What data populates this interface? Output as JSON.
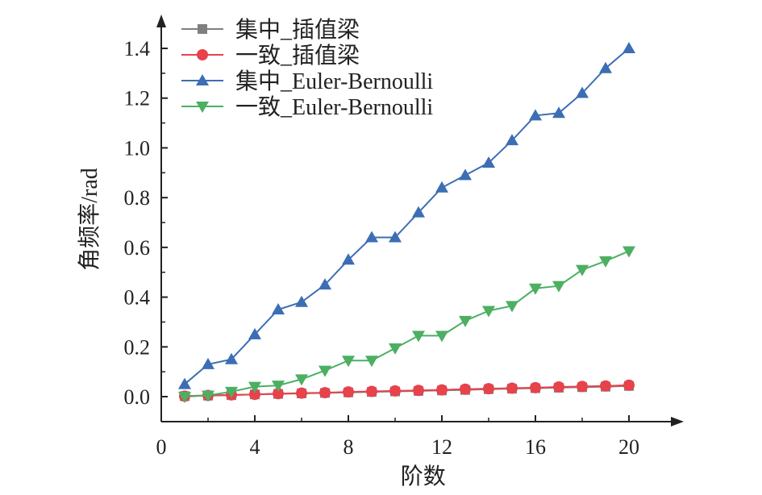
{
  "chart_data": {
    "type": "line",
    "xlabel": "阶数",
    "ylabel": "角频率/rad",
    "xlim": [
      0,
      22
    ],
    "ylim": [
      -0.1,
      1.5
    ],
    "xticks": [
      0,
      4,
      8,
      12,
      16,
      20
    ],
    "xtick_labels": [
      "0",
      "4",
      "8",
      "12",
      "16",
      "20"
    ],
    "yticks": [
      0.0,
      0.2,
      0.4,
      0.6,
      0.8,
      1.0,
      1.2,
      1.4
    ],
    "ytick_labels": [
      "0.0",
      "0.2",
      "0.4",
      "0.6",
      "0.8",
      "1.0",
      "1.2",
      "1.4"
    ],
    "grid": false,
    "legend_position": "top-left",
    "x": [
      1,
      2,
      3,
      4,
      5,
      6,
      7,
      8,
      9,
      10,
      11,
      12,
      13,
      14,
      15,
      16,
      17,
      18,
      19,
      20
    ],
    "series": [
      {
        "name": "集中_插值梁",
        "color": "#7f7f7f",
        "marker": "square",
        "values": [
          0.002,
          0.004,
          0.006,
          0.009,
          0.011,
          0.013,
          0.015,
          0.017,
          0.019,
          0.021,
          0.023,
          0.025,
          0.027,
          0.03,
          0.032,
          0.034,
          0.036,
          0.038,
          0.04,
          0.043
        ]
      },
      {
        "name": "一致_插值梁",
        "color": "#e8424a",
        "marker": "circle",
        "values": [
          0.002,
          0.005,
          0.007,
          0.009,
          0.012,
          0.014,
          0.016,
          0.019,
          0.021,
          0.023,
          0.025,
          0.027,
          0.03,
          0.032,
          0.034,
          0.036,
          0.039,
          0.041,
          0.043,
          0.046
        ]
      },
      {
        "name": "集中_Euler-Bernoulli",
        "color": "#3c6eb4",
        "marker": "triangle-up",
        "values": [
          0.05,
          0.13,
          0.15,
          0.25,
          0.35,
          0.38,
          0.45,
          0.55,
          0.64,
          0.64,
          0.74,
          0.84,
          0.89,
          0.94,
          1.03,
          1.13,
          1.14,
          1.22,
          1.32,
          1.4
        ]
      },
      {
        "name": "一致_Euler-Bernoulli",
        "color": "#4caf62",
        "marker": "triangle-down",
        "values": [
          0.0,
          0.005,
          0.02,
          0.04,
          0.045,
          0.07,
          0.105,
          0.145,
          0.145,
          0.195,
          0.245,
          0.245,
          0.305,
          0.345,
          0.365,
          0.435,
          0.445,
          0.51,
          0.545,
          0.585
        ]
      }
    ]
  }
}
